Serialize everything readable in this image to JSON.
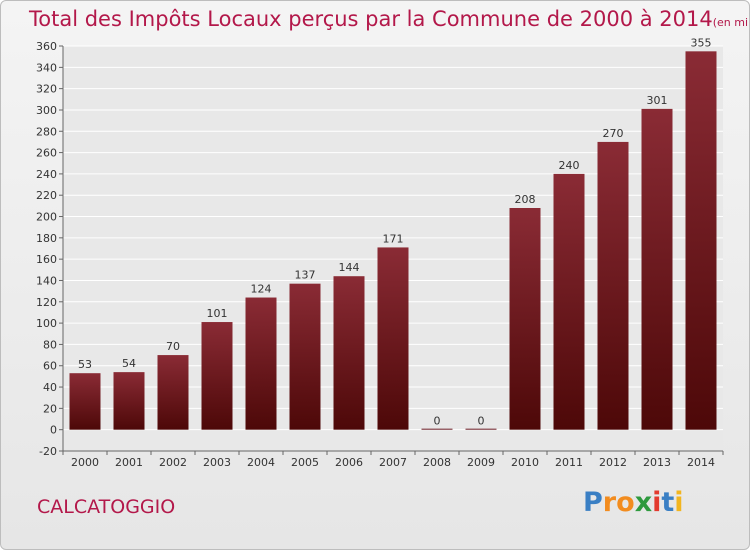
{
  "chart_data": {
    "type": "bar",
    "title": "Total des Impôts Locaux perçus par la Commune de 2000 à 2014",
    "subtitle": "(en milliers d'€)",
    "categories": [
      "2000",
      "2001",
      "2002",
      "2003",
      "2004",
      "2005",
      "2006",
      "2007",
      "2008",
      "2009",
      "2010",
      "2011",
      "2012",
      "2013",
      "2014"
    ],
    "values": [
      53,
      54,
      70,
      101,
      124,
      137,
      144,
      171,
      0,
      0,
      208,
      240,
      270,
      301,
      355
    ],
    "data_labels": [
      "53",
      "54",
      "70",
      "101",
      "124",
      "137",
      "144",
      "171",
      "0",
      "0",
      "208",
      "240",
      "270",
      "301",
      "355"
    ],
    "ylim": [
      -20,
      360
    ],
    "yticks": [
      -20,
      0,
      20,
      40,
      60,
      80,
      100,
      120,
      140,
      160,
      180,
      200,
      220,
      240,
      260,
      280,
      300,
      320,
      340,
      360
    ],
    "ytick_labels": [
      "-20",
      "0",
      "20",
      "40",
      "60",
      "80",
      "100",
      "120",
      "140",
      "160",
      "180",
      "200",
      "220",
      "240",
      "260",
      "280",
      "300",
      "320",
      "340",
      "360"
    ],
    "grid": true,
    "bar_color": "#7a1a25"
  },
  "commune": "CALCATOGGIO",
  "logo": {
    "letters": [
      "P",
      "r",
      "o",
      "x",
      "i",
      "t",
      "i"
    ],
    "colors": [
      "#3a7fc4",
      "#f28c1f",
      "#f28c1f",
      "#2e9a3e",
      "#e33a2f",
      "#3a7fc4",
      "#f2b51f"
    ]
  }
}
